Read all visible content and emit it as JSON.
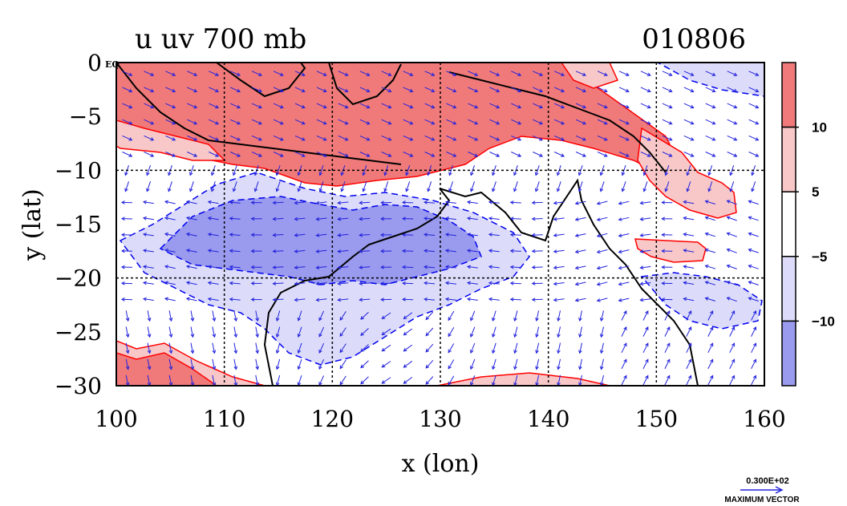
{
  "chart_data": {
    "type": "contour_vector_map",
    "title_left": "u uv 700 mb",
    "title_right": "010806",
    "xlabel": "x (lon)",
    "ylabel": "y (lat)",
    "xlim": [
      100,
      160
    ],
    "ylim": [
      -30,
      0
    ],
    "xticks": [
      100,
      110,
      120,
      130,
      140,
      150,
      160
    ],
    "yticks": [
      {
        "value": 0,
        "label": "0",
        "suffix": "EQ"
      },
      {
        "value": -5,
        "label": "−5"
      },
      {
        "value": -10,
        "label": "−10"
      },
      {
        "value": -15,
        "label": "−15"
      },
      {
        "value": -20,
        "label": "−20"
      },
      {
        "value": -25,
        "label": "−25"
      },
      {
        "value": -30,
        "label": "−30"
      }
    ],
    "gridlines_lon": [
      110,
      120,
      130,
      140,
      150
    ],
    "gridlines_lat": [
      -10,
      -20
    ],
    "colorbar": {
      "levels": [
        {
          "range": "> 10",
          "color": "#f07a7a"
        },
        {
          "range": "5 to 10",
          "color": "#f8c8c8"
        },
        {
          "range": "-5 to 5",
          "color": "#ffffff"
        },
        {
          "range": "-10 to -5",
          "color": "#dcdcfa"
        },
        {
          "range": "< -10",
          "color": "#9a9aee"
        }
      ],
      "tick_labels": [
        "10",
        "5",
        "−5",
        "−10"
      ]
    },
    "vector_legend": {
      "value_label": "0.300E+02",
      "caption": "MAXIMUM VECTOR"
    },
    "colors": {
      "strong_pos": "#f07a7a",
      "weak_pos": "#f8c8c8",
      "weak_neg": "#dcdcfa",
      "strong_neg": "#9a9aee",
      "pos_contour": "#ff0000",
      "neg_contour": "#0000ee",
      "vector": "#2222dd",
      "coast": "#000000"
    }
  }
}
